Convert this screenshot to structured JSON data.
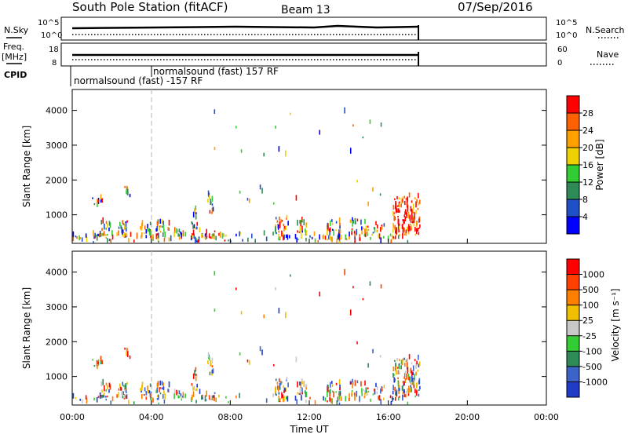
{
  "header": {
    "station": "South Pole Station (fitACF)",
    "beam": "Beam 13",
    "date": "07/Sep/2016"
  },
  "side_labels": {
    "nsky": "N.Sky",
    "freq": "Freq.",
    "freq_unit": "[MHz]",
    "cpid": "CPID",
    "nsearch": "N.Search",
    "nave": "Nave",
    "nsky_ticks": [
      "10^5",
      "10^0"
    ],
    "freq_ticks": [
      "18",
      "8"
    ],
    "nave_ticks": [
      "60",
      "0"
    ],
    "nsearch_ticks": [
      "10^5",
      "10^0"
    ]
  },
  "cpid_labels": [
    "normalsound (fast) 157 RF",
    "normalsound (fast) -157 RF"
  ],
  "chart_data": [
    {
      "type": "heatmap",
      "panel": "power",
      "ylabel": "Slant Range [km]",
      "yticks": [
        "1000",
        "2000",
        "3000",
        "4000"
      ],
      "ylim": [
        180,
        4600
      ],
      "colorbar_label": "Power [dB]",
      "colorbar_ticks": [
        "4",
        "8",
        "12",
        "16",
        "20",
        "24",
        "28"
      ],
      "colorbar_colors": [
        "#0000ff",
        "#2050c8",
        "#2e8b57",
        "#32cd32",
        "#f0d000",
        "#ffa000",
        "#ff6000",
        "#ff0000"
      ],
      "colorbar_range": [
        0,
        32
      ],
      "data_end_hour": 17.6
    },
    {
      "type": "heatmap",
      "panel": "velocity",
      "ylabel": "Slant Range [km]",
      "yticks": [
        "1000",
        "2000",
        "3000",
        "4000"
      ],
      "ylim": [
        180,
        4600
      ],
      "colorbar_label": "Velocity [m s⁻¹]",
      "colorbar_ticks": [
        "1000",
        "500",
        "100",
        "25",
        "-25",
        "-100",
        "-500",
        "-1000"
      ],
      "colorbar_colors": [
        "#1e3cc8",
        "#3c64c8",
        "#2e8b57",
        "#32cd32",
        "#c8c8c8",
        "#f0c000",
        "#ff8000",
        "#ff4000",
        "#ff0000"
      ],
      "data_end_hour": 17.6
    }
  ],
  "time_axis": {
    "label": "Time UT",
    "ticks": [
      "00:00",
      "04:00",
      "08:00",
      "12:00",
      "16:00",
      "20:00",
      "00:00"
    ],
    "range_hours": [
      0,
      24
    ],
    "cpid_change_hour": 4.0
  },
  "clusters": [
    {
      "t0": 0.0,
      "t1": 17.6,
      "r0": 180,
      "r1": 420,
      "d": 0.35
    },
    {
      "t0": 1.0,
      "t1": 1.5,
      "r0": 1200,
      "r1": 1500,
      "d": 0.5
    },
    {
      "t0": 1.3,
      "t1": 1.9,
      "r0": 350,
      "r1": 750,
      "d": 0.6
    },
    {
      "t0": 2.3,
      "t1": 2.9,
      "r0": 300,
      "r1": 800,
      "d": 0.6
    },
    {
      "t0": 2.6,
      "t1": 2.9,
      "r0": 1500,
      "r1": 1900,
      "d": 0.4
    },
    {
      "t0": 3.4,
      "t1": 4.0,
      "r0": 300,
      "r1": 750,
      "d": 0.55
    },
    {
      "t0": 4.2,
      "t1": 4.9,
      "r0": 300,
      "r1": 750,
      "d": 0.55
    },
    {
      "t0": 5.1,
      "t1": 5.6,
      "r0": 300,
      "r1": 500,
      "d": 0.4
    },
    {
      "t0": 6.0,
      "t1": 6.3,
      "r0": 500,
      "r1": 1200,
      "d": 0.5
    },
    {
      "t0": 6.8,
      "t1": 7.1,
      "r0": 1000,
      "r1": 1550,
      "d": 0.8
    },
    {
      "t0": 6.0,
      "t1": 7.5,
      "r0": 280,
      "r1": 500,
      "d": 0.4
    },
    {
      "t0": 10.2,
      "t1": 10.9,
      "r0": 250,
      "r1": 900,
      "d": 0.7
    },
    {
      "t0": 11.3,
      "t1": 11.9,
      "r0": 300,
      "r1": 800,
      "d": 0.5
    },
    {
      "t0": 12.8,
      "t1": 13.6,
      "r0": 250,
      "r1": 800,
      "d": 0.55
    },
    {
      "t0": 14.0,
      "t1": 14.5,
      "r0": 300,
      "r1": 850,
      "d": 0.4
    },
    {
      "t0": 14.5,
      "t1": 15.0,
      "r0": 400,
      "r1": 800,
      "d": 0.4
    },
    {
      "t0": 15.2,
      "t1": 15.8,
      "r0": 300,
      "r1": 700,
      "d": 0.35
    },
    {
      "t0": 16.2,
      "t1": 17.6,
      "r0": 300,
      "r1": 1500,
      "d": 0.75
    },
    {
      "t0": 7.0,
      "t1": 16.0,
      "r0": 1200,
      "r1": 4000,
      "d": 0.01
    }
  ]
}
